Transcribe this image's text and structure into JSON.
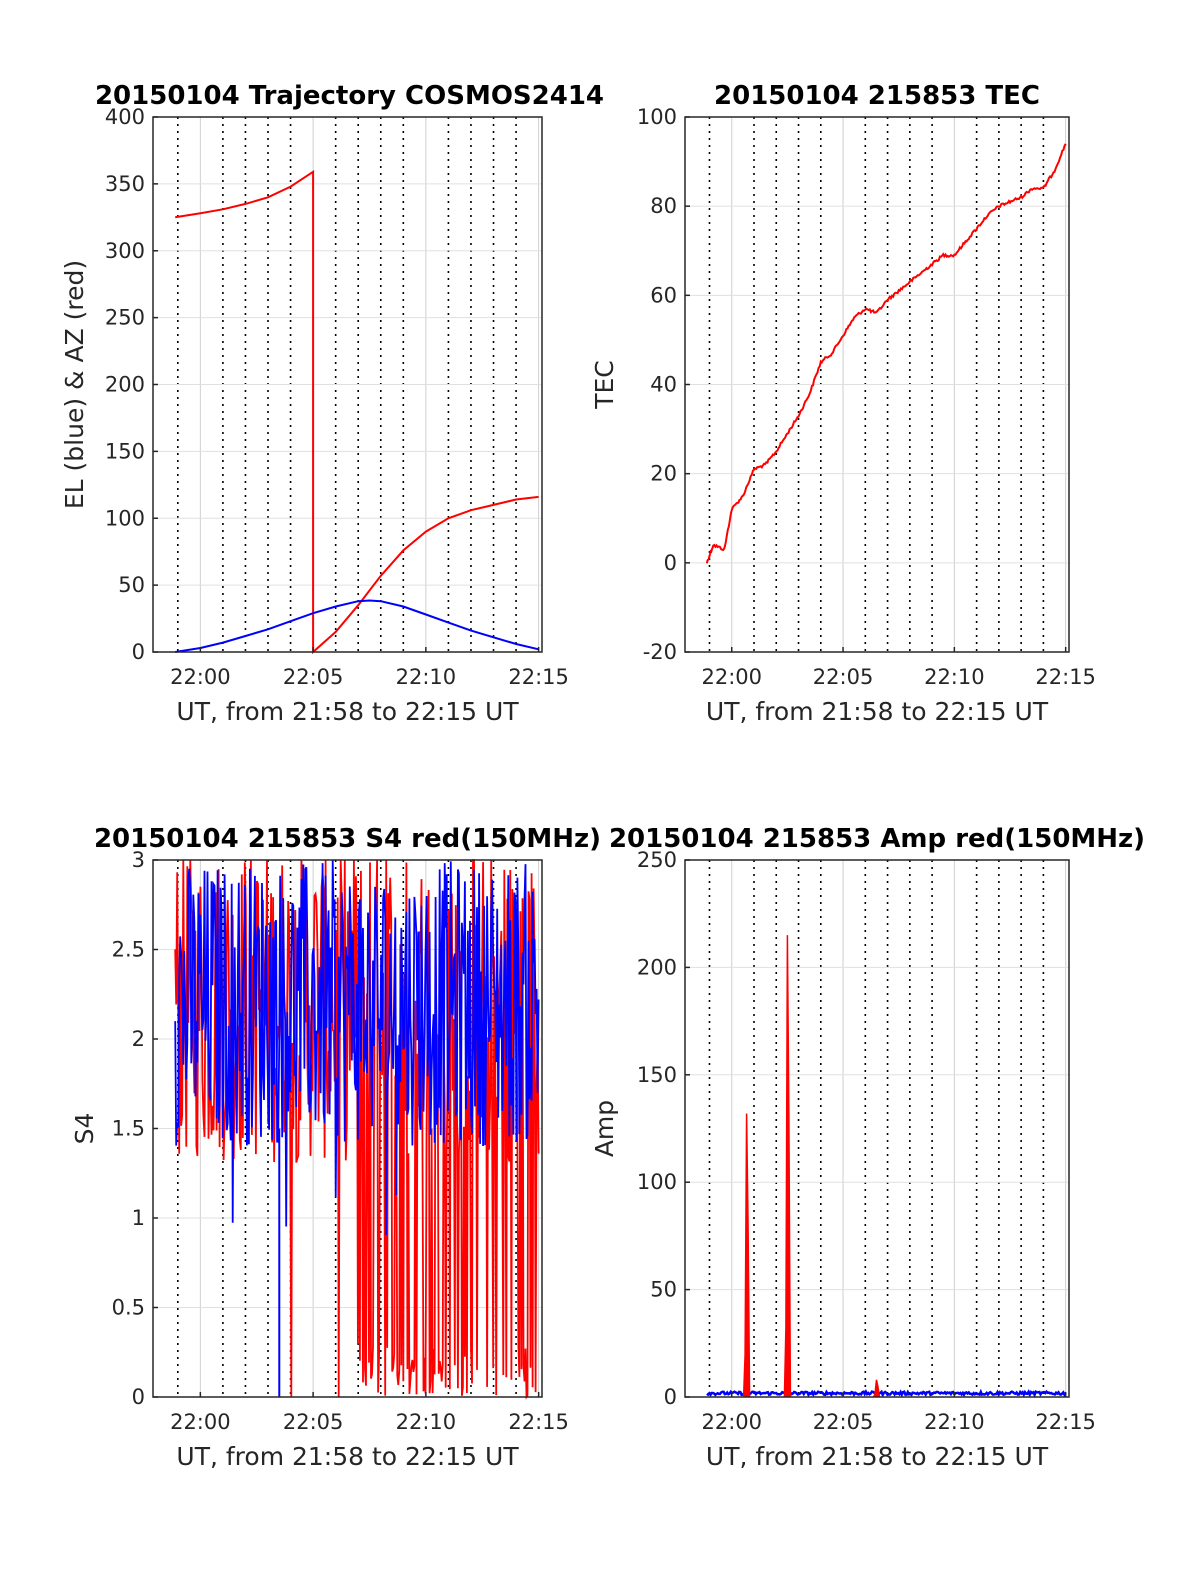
{
  "chart_data": [
    {
      "type": "line",
      "title": "20150104 Trajectory COSMOS2414",
      "xlabel": "UT, from 21:58 to 22:15 UT",
      "ylabel": "EL (blue) & AZ (red)",
      "xticks": [
        "22:00",
        "22:05",
        "22:10",
        "22:15"
      ],
      "yticks": [
        "0",
        "50",
        "100",
        "150",
        "200",
        "250",
        "300",
        "350",
        "400"
      ],
      "ylim": [
        0,
        400
      ],
      "colors": {
        "el": "#0000ff",
        "az": "#ff0000"
      },
      "series": [
        {
          "color": "#ff0000",
          "x": [
            "21:58:53",
            "22:00:00",
            "22:01:00",
            "22:02:00",
            "22:03:00",
            "22:04:00",
            "22:05:00",
            "22:05:00",
            "22:06:00",
            "22:07:00",
            "22:08:00",
            "22:09:00",
            "22:10:00",
            "22:11:00",
            "22:12:00",
            "22:13:00",
            "22:14:00",
            "22:15:00"
          ],
          "values": [
            325,
            328,
            331,
            335,
            340,
            348,
            359,
            0,
            15,
            35,
            57,
            76,
            90,
            100,
            106,
            110,
            114,
            116
          ]
        },
        {
          "color": "#0000ff",
          "x": [
            "21:58:53",
            "22:00:00",
            "22:01:00",
            "22:02:00",
            "22:03:00",
            "22:04:00",
            "22:05:00",
            "22:06:00",
            "22:07:00",
            "22:07:30",
            "22:08:00",
            "22:09:00",
            "22:10:00",
            "22:11:00",
            "22:12:00",
            "22:13:00",
            "22:14:00",
            "22:15:00"
          ],
          "values": [
            0,
            3,
            7,
            12,
            17,
            23,
            29,
            34,
            38,
            38.5,
            38,
            34,
            28,
            22,
            16,
            11,
            6,
            2
          ]
        }
      ]
    },
    {
      "type": "line",
      "title": "20150104 215853 TEC",
      "xlabel": "UT, from 21:58 to 22:15 UT",
      "ylabel": "TEC",
      "xticks": [
        "22:00",
        "22:05",
        "22:10",
        "22:15"
      ],
      "yticks": [
        "-20",
        "0",
        "20",
        "40",
        "60",
        "80",
        "100"
      ],
      "ylim": [
        -20,
        100
      ],
      "series": [
        {
          "color": "#ff0000",
          "x": [
            "21:58:53",
            "21:59:10",
            "21:59:40",
            "22:00:00",
            "22:00:30",
            "22:01:00",
            "22:01:30",
            "22:02:00",
            "22:02:30",
            "22:03:00",
            "22:03:30",
            "22:04:00",
            "22:04:30",
            "22:05:00",
            "22:05:30",
            "22:06:00",
            "22:06:30",
            "22:07:00",
            "22:07:30",
            "22:08:00",
            "22:08:30",
            "22:09:00",
            "22:09:30",
            "22:10:00",
            "22:10:30",
            "22:11:00",
            "22:11:30",
            "22:12:00",
            "22:12:30",
            "22:13:00",
            "22:13:30",
            "22:14:00",
            "22:14:30",
            "22:15:00"
          ],
          "values": [
            0,
            4,
            3,
            12,
            15,
            21,
            22,
            25,
            29,
            33,
            38,
            45,
            47,
            51,
            55,
            57,
            56,
            59,
            61,
            63,
            65,
            67,
            69,
            69,
            72,
            75,
            78,
            80,
            81,
            82,
            84,
            84,
            88,
            94
          ]
        }
      ]
    },
    {
      "type": "line",
      "title": "20150104 215853 S4 red(150MHz)",
      "xlabel": "UT, from 21:58 to 22:15 UT",
      "ylabel": "S4",
      "xticks": [
        "22:00",
        "22:05",
        "22:10",
        "22:15"
      ],
      "yticks": [
        "0",
        "0.5",
        "1",
        "1.5",
        "2",
        "2.5",
        "3"
      ],
      "ylim": [
        0,
        3
      ],
      "series": [
        {
          "color": "#ff0000",
          "values": []
        },
        {
          "color": "#0000ff",
          "values": []
        }
      ]
    },
    {
      "type": "line",
      "title": "20150104 215853 Amp red(150MHz)",
      "xlabel": "UT, from 21:58 to 22:15 UT",
      "ylabel": "Amp",
      "xticks": [
        "22:00",
        "22:05",
        "22:10",
        "22:15"
      ],
      "yticks": [
        "0",
        "50",
        "100",
        "150",
        "200",
        "250"
      ],
      "ylim": [
        0,
        250
      ],
      "spikes": [
        {
          "x": "22:00:40",
          "peak": 132
        },
        {
          "x": "22:02:30",
          "peak": 215
        },
        {
          "x": "22:06:30",
          "peak": 8
        }
      ],
      "series": [
        {
          "color": "#ff0000",
          "values": []
        },
        {
          "color": "#0000ff",
          "values": []
        }
      ]
    }
  ]
}
